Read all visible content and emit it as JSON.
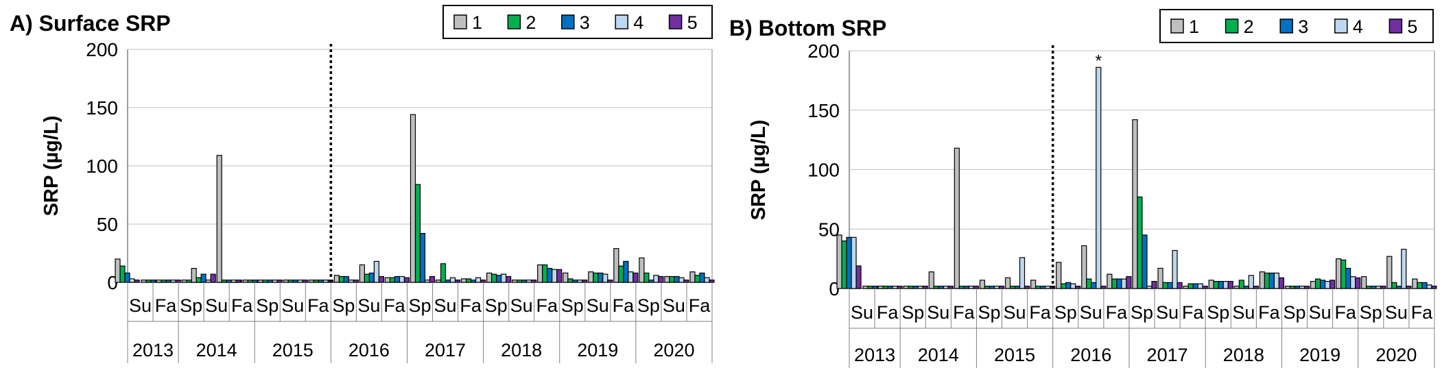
{
  "charts": [
    {
      "type": "bar",
      "title": "A) Surface SRP",
      "ylabel": "SRP (µg/L)",
      "ylim": [
        0,
        200
      ],
      "yticks": [
        0,
        50,
        100,
        150,
        200
      ],
      "legend": [
        "1",
        "2",
        "3",
        "4",
        "5"
      ],
      "season_labels": [
        "Su",
        "Fa",
        "Sp",
        "Su",
        "Fa",
        "Sp",
        "Su",
        "Fa",
        "Sp",
        "Su",
        "Fa",
        "Sp",
        "Su",
        "Fa",
        "Sp",
        "Su",
        "Fa",
        "Sp",
        "Su",
        "Fa",
        "Sp",
        "Su",
        "Fa"
      ],
      "year_labels": [
        {
          "label": "2013",
          "span": [
            0,
            1
          ]
        },
        {
          "label": "2014",
          "span": [
            2,
            4
          ]
        },
        {
          "label": "2015",
          "span": [
            5,
            7
          ]
        },
        {
          "label": "2016",
          "span": [
            8,
            10
          ]
        },
        {
          "label": "2017",
          "span": [
            11,
            13
          ]
        },
        {
          "label": "2018",
          "span": [
            14,
            16
          ]
        },
        {
          "label": "2019",
          "span": [
            17,
            19
          ]
        },
        {
          "label": "2020",
          "span": [
            20,
            22
          ]
        }
      ],
      "divider_after_group": 7,
      "groups": [
        {
          "days": [
            [
              20,
              14,
              8,
              3,
              2
            ],
            [
              2,
              2,
              2,
              2,
              2
            ]
          ]
        },
        {
          "days": [
            [
              2,
              2,
              2,
              2,
              2
            ]
          ]
        },
        {
          "days": [
            [
              2,
              2,
              2,
              2,
              2
            ]
          ]
        },
        {
          "days": [
            [
              12,
              4,
              7,
              2,
              7
            ],
            [
              2,
              2,
              2,
              2,
              2
            ]
          ]
        },
        {
          "days": [
            [
              109,
              2,
              2,
              2,
              2
            ],
            [
              2,
              2,
              2,
              2,
              2
            ]
          ]
        },
        {
          "days": [
            [
              2,
              2,
              2,
              2,
              2
            ]
          ]
        },
        {
          "days": [
            [
              2,
              2,
              2,
              2,
              2
            ]
          ]
        },
        {
          "days": [
            [
              2,
              2,
              2,
              2,
              2
            ]
          ]
        },
        {
          "days": [
            [
              6,
              5,
              5,
              2,
              2
            ]
          ]
        },
        {
          "days": [
            [
              15,
              7,
              8,
              18,
              5
            ]
          ]
        },
        {
          "days": [
            [
              4,
              4,
              5,
              5,
              4
            ]
          ]
        },
        {
          "days": [
            [
              144,
              84,
              42,
              2,
              5
            ]
          ]
        },
        {
          "days": [
            [
              2,
              16,
              2,
              4,
              2
            ]
          ]
        },
        {
          "days": [
            [
              3,
              3,
              2,
              4,
              2
            ]
          ]
        },
        {
          "days": [
            [
              8,
              7,
              6,
              7,
              5
            ]
          ]
        },
        {
          "days": [
            [
              2,
              2,
              2,
              2,
              2
            ]
          ]
        },
        {
          "days": [
            [
              15,
              15,
              12,
              11,
              11
            ]
          ]
        },
        {
          "days": [
            [
              8,
              3,
              2,
              2,
              2
            ]
          ]
        },
        {
          "days": [
            [
              9,
              8,
              8,
              7,
              2
            ]
          ]
        },
        {
          "days": [
            [
              29,
              14,
              18,
              9,
              8
            ]
          ]
        },
        {
          "days": [
            [
              21,
              8,
              2,
              6,
              5
            ]
          ]
        },
        {
          "days": [
            [
              5,
              5,
              5,
              4,
              2
            ]
          ]
        },
        {
          "days": [
            [
              9,
              6,
              8,
              4,
              2
            ]
          ]
        }
      ]
    },
    {
      "type": "bar",
      "title": "B) Bottom SRP",
      "ylabel": "SRP (µg/L)",
      "ylim": [
        0,
        200
      ],
      "yticks": [
        0,
        50,
        100,
        150,
        200
      ],
      "legend": [
        "1",
        "2",
        "3",
        "4",
        "5"
      ],
      "season_labels": [
        "Su",
        "Fa",
        "Sp",
        "Su",
        "Fa",
        "Sp",
        "Su",
        "Fa",
        "Sp",
        "Su",
        "Fa",
        "Sp",
        "Su",
        "Fa",
        "Sp",
        "Su",
        "Fa",
        "Sp",
        "Su",
        "Fa",
        "Sp",
        "Su",
        "Fa"
      ],
      "year_labels": [
        {
          "label": "2013",
          "span": [
            0,
            1
          ]
        },
        {
          "label": "2014",
          "span": [
            2,
            4
          ]
        },
        {
          "label": "2015",
          "span": [
            5,
            7
          ]
        },
        {
          "label": "2016",
          "span": [
            8,
            10
          ]
        },
        {
          "label": "2017",
          "span": [
            11,
            13
          ]
        },
        {
          "label": "2018",
          "span": [
            14,
            16
          ]
        },
        {
          "label": "2019",
          "span": [
            17,
            19
          ]
        },
        {
          "label": "2020",
          "span": [
            20,
            22
          ]
        }
      ],
      "divider_after_group": 7,
      "annotation": {
        "text": "*",
        "group": 9,
        "series": 3
      },
      "groups": [
        {
          "days": [
            [
              45,
              40,
              43,
              43,
              19
            ],
            [
              2,
              2,
              2,
              2,
              2
            ]
          ]
        },
        {
          "days": [
            [
              2,
              2,
              2,
              2,
              2
            ]
          ]
        },
        {
          "days": [
            [
              2,
              2,
              2,
              2,
              2
            ]
          ]
        },
        {
          "days": [
            [
              14,
              2,
              2,
              2,
              2
            ]
          ]
        },
        {
          "days": [
            [
              118,
              2,
              2,
              2,
              2
            ]
          ]
        },
        {
          "days": [
            [
              7,
              2,
              2,
              2,
              2
            ]
          ]
        },
        {
          "days": [
            [
              9,
              2,
              2,
              26,
              2
            ]
          ]
        },
        {
          "days": [
            [
              7,
              2,
              2,
              2,
              2
            ]
          ]
        },
        {
          "days": [
            [
              22,
              4,
              5,
              4,
              2
            ]
          ]
        },
        {
          "days": [
            [
              36,
              8,
              5,
              186,
              2
            ]
          ]
        },
        {
          "days": [
            [
              12,
              8,
              8,
              8,
              10
            ]
          ]
        },
        {
          "days": [
            [
              142,
              77,
              45,
              2,
              6
            ]
          ]
        },
        {
          "days": [
            [
              17,
              5,
              5,
              32,
              5
            ]
          ]
        },
        {
          "days": [
            [
              2,
              4,
              4,
              4,
              2
            ]
          ]
        },
        {
          "days": [
            [
              7,
              6,
              6,
              6,
              6
            ]
          ]
        },
        {
          "days": [
            [
              2,
              7,
              2,
              11,
              2
            ]
          ]
        },
        {
          "days": [
            [
              14,
              13,
              13,
              13,
              9
            ]
          ]
        },
        {
          "days": [
            [
              2,
              2,
              2,
              2,
              2
            ]
          ]
        },
        {
          "days": [
            [
              6,
              8,
              7,
              6,
              7
            ]
          ]
        },
        {
          "days": [
            [
              25,
              24,
              17,
              10,
              9
            ]
          ]
        },
        {
          "days": [
            [
              10,
              2,
              2,
              2,
              2
            ]
          ]
        },
        {
          "days": [
            [
              27,
              5,
              2,
              33,
              2
            ]
          ]
        },
        {
          "days": [
            [
              8,
              5,
              5,
              3,
              2
            ]
          ]
        }
      ]
    }
  ],
  "colors": {
    "series": [
      "#BFBFBF",
      "#00B050",
      "#0070C0",
      "#BDD7EE",
      "#7030A0"
    ],
    "bar_outline": "#000000",
    "axis": "#808080",
    "grid": "#BFBFBF"
  }
}
